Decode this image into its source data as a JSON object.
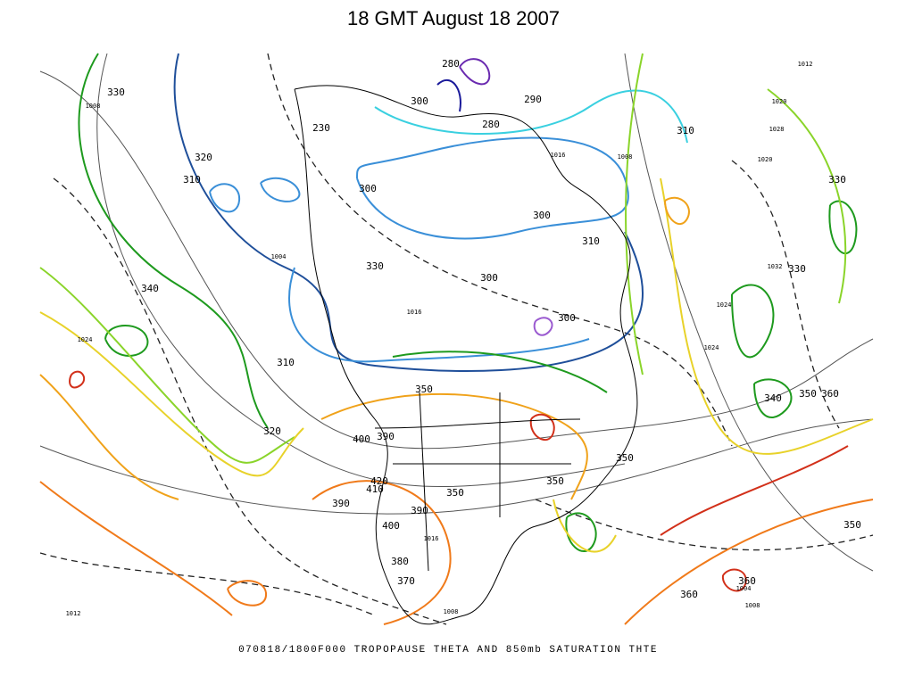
{
  "header": {
    "title": "18 GMT August 18 2007"
  },
  "map": {
    "contour_labels": [
      "330",
      "310",
      "320",
      "340",
      "310",
      "320",
      "400",
      "390",
      "350",
      "420",
      "410",
      "390",
      "350",
      "390",
      "400",
      "380",
      "370",
      "330",
      "300",
      "300",
      "300",
      "310",
      "310",
      "330",
      "330",
      "340",
      "350",
      "360",
      "350",
      "350",
      "350",
      "360",
      "360",
      "290",
      "280",
      "280",
      "300",
      "300",
      "230"
    ],
    "pressure_labels": [
      "1008",
      "1012",
      "1020",
      "1028",
      "1020",
      "1032",
      "1024",
      "1024",
      "1024",
      "1016",
      "1004",
      "1016",
      "1008",
      "1012",
      "1008",
      "1016",
      "1004",
      "1008"
    ]
  },
  "footer": {
    "caption": "070818/1800F000 TROPOPAUSE THETA AND 850mb SATURATION THTE"
  }
}
